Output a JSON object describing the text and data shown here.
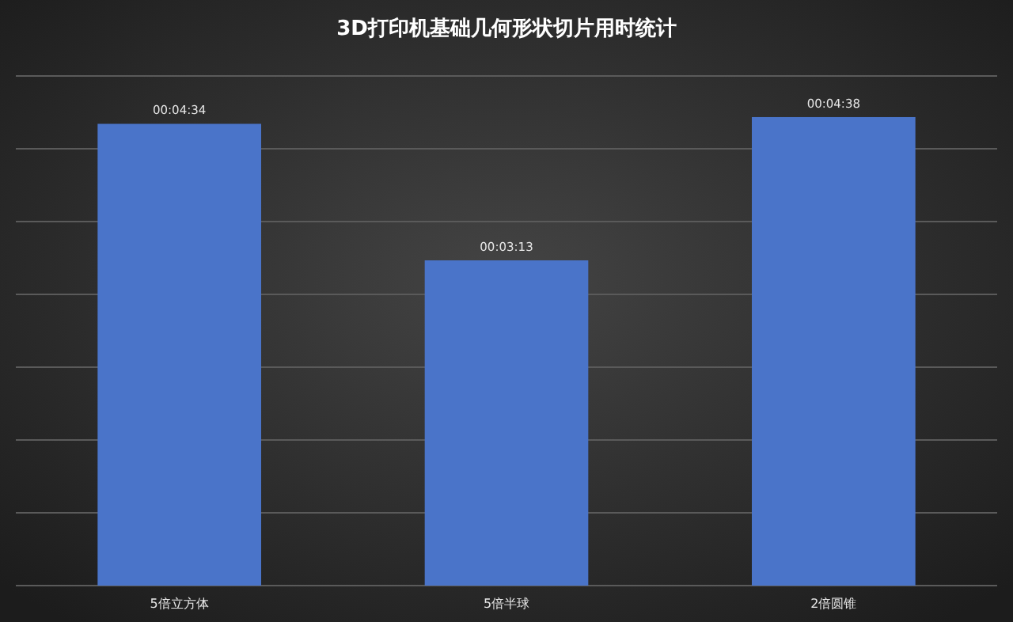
{
  "chart_data": {
    "type": "bar",
    "title": "3D打印机基础几何形状切片用时统计",
    "categories": [
      "5倍立方体",
      "5倍半球",
      "2倍圆锥"
    ],
    "values": [
      274,
      193,
      278
    ],
    "value_labels": [
      "00:04:34",
      "00:03:13",
      "00:04:38"
    ],
    "color": "#4a74c9",
    "ylim": [
      0,
      302.4
    ],
    "yticks": [
      {
        "value": 0,
        "label": null
      },
      {
        "value": 43.2,
        "label": null
      },
      {
        "value": 86.4,
        "label": null
      },
      {
        "value": 129.6,
        "label": null
      },
      {
        "value": 172.8,
        "label": null
      },
      {
        "value": 216,
        "label": null
      },
      {
        "value": 259.2,
        "label": null
      },
      {
        "value": 302.4,
        "label": null
      }
    ],
    "grid": "y",
    "tick_labels": "x"
  }
}
